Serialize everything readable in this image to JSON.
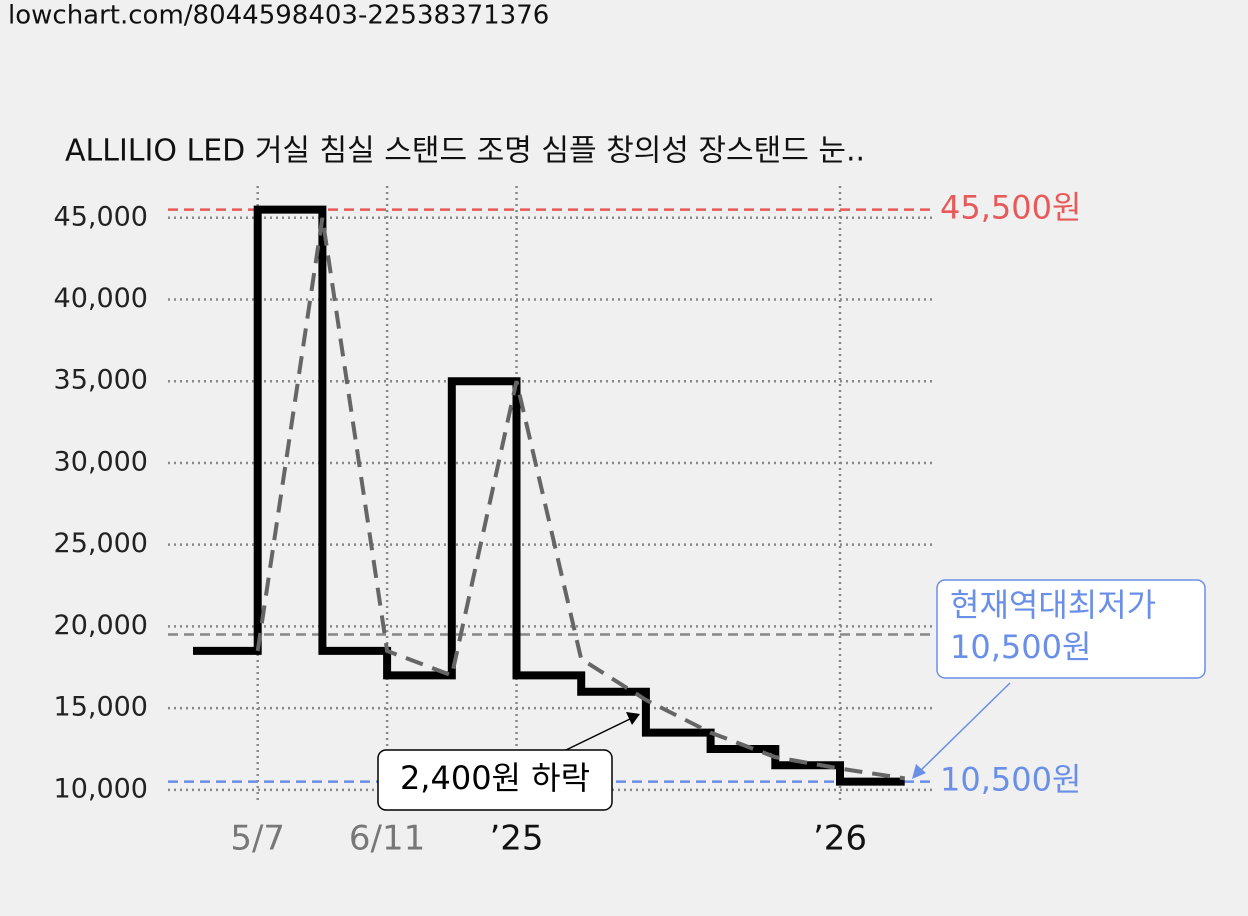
{
  "url": "lowchart.com/8044598403-22538371376",
  "chart_data": {
    "type": "step-line",
    "title": "ALLILIO LED 거실 침실 스탠드 조명 심플 창의성 장스탠드 눈..",
    "categories": [
      null,
      "5/7",
      null,
      "6/11",
      null,
      "’25",
      null,
      null,
      null,
      null,
      "’26",
      null
    ],
    "series": [
      {
        "color": "#000000",
        "values": [
          18500,
          45500,
          18500,
          17000,
          35000,
          17000,
          16000,
          13500,
          12500,
          11500,
          10500,
          10500
        ]
      },
      {
        "color": "#666666",
        "dashed": true,
        "values": [
          null,
          18500,
          45000,
          18500,
          17000,
          35000,
          18000,
          15500,
          13500,
          12000,
          11300,
          10700
        ]
      }
    ],
    "ylim": [
      9500,
      46700
    ],
    "yticks": [
      {
        "value": 10000,
        "label": "10,000"
      },
      {
        "value": 15000,
        "label": "15,000"
      },
      {
        "value": 20000,
        "label": "20,000"
      },
      {
        "value": 25000,
        "label": "25,000"
      },
      {
        "value": 30000,
        "label": "30,000"
      },
      {
        "value": 35000,
        "label": "35,000"
      },
      {
        "value": 40000,
        "label": "40,000"
      },
      {
        "value": 45000,
        "label": "45,000"
      }
    ],
    "grid": true,
    "max_line": {
      "value": 45500,
      "label": "45,500원",
      "color": "#e85a5a"
    },
    "min_line": {
      "value": 10500,
      "label": "10,500원",
      "color": "#6a8fe8"
    },
    "avg_line": {
      "value": 19500,
      "color": "#888888"
    },
    "callout": {
      "lines": [
        "현재역대최저가",
        "10,500원"
      ],
      "color": "#6a8fe8"
    },
    "drop_note": "2,400원 하락"
  }
}
